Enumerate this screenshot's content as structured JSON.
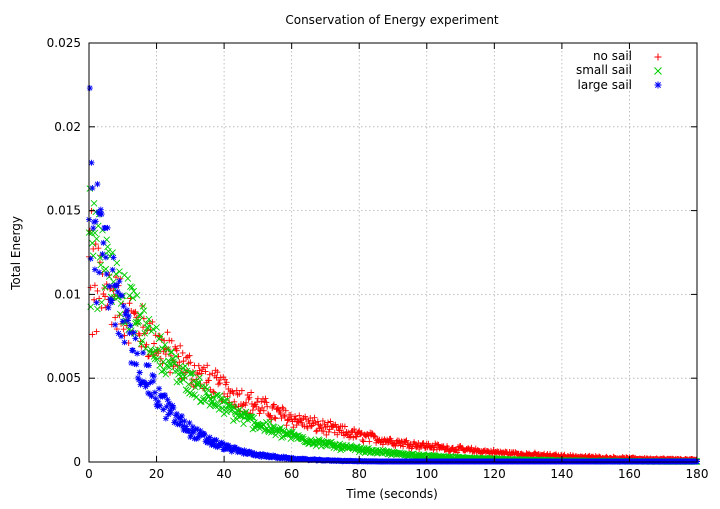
{
  "chart_data": {
    "type": "scatter",
    "title": "Conservation of Energy experiment",
    "xlabel": "Time (seconds)",
    "ylabel": "Total Energy",
    "xlim": [
      0,
      180
    ],
    "ylim": [
      0,
      0.025
    ],
    "x_ticks": [
      "0",
      "20",
      "40",
      "60",
      "80",
      "100",
      "120",
      "140",
      "160",
      "180"
    ],
    "y_ticks": [
      "0",
      "0.005",
      "0.01",
      "0.015",
      "0.02",
      "0.025"
    ],
    "grid": true,
    "legend_position": "top-right",
    "series": [
      {
        "name": "no sail",
        "marker": "+",
        "color": "#ff0000",
        "model": {
          "amplitude_lo": 0.0096,
          "amplitude_hi": 0.0138,
          "tau": 40,
          "x_step": 0.25,
          "x_max": 180,
          "spread_band": 0.00055,
          "shape": "decay"
        }
      },
      {
        "name": "small sail",
        "marker": "x",
        "color": "#00cc00",
        "model": {
          "amplitude_lo": 0.0122,
          "amplitude_hi": 0.0168,
          "tau": 27,
          "x_step": 0.25,
          "x_max": 180,
          "spread_band": 0.00045,
          "shape": "decay"
        }
      },
      {
        "name": "large sail",
        "marker": "*",
        "color": "#0000ff",
        "model": {
          "amplitude_lo": 0.014,
          "amplitude_hi": 0.0215,
          "tau": 13.5,
          "x_step": 0.25,
          "x_max": 180,
          "spread_band": 0.0003,
          "shape": "decay"
        }
      }
    ]
  }
}
